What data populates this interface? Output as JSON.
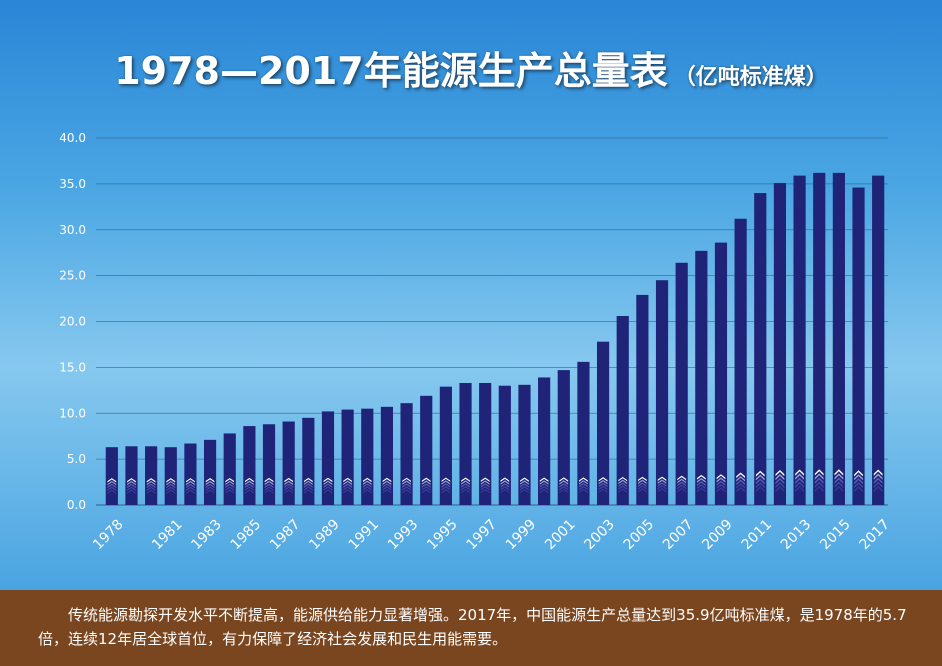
{
  "title": {
    "main": "1978—2017年能源生产总量表",
    "sub": "（亿吨标准煤）"
  },
  "chart_data": {
    "type": "bar",
    "title": "1978—2017年能源生产总量表",
    "xlabel": "",
    "ylabel": "",
    "ylim": [
      0,
      40
    ],
    "yticks": [
      "0.0",
      "5.0",
      "10.0",
      "15.0",
      "20.0",
      "25.0",
      "30.0",
      "35.0",
      "40.0"
    ],
    "grid": true,
    "x": [
      1978,
      1979,
      1980,
      1981,
      1982,
      1983,
      1984,
      1985,
      1986,
      1987,
      1988,
      1989,
      1990,
      1991,
      1992,
      1993,
      1994,
      1995,
      1996,
      1997,
      1998,
      1999,
      2000,
      2001,
      2002,
      2003,
      2004,
      2005,
      2006,
      2007,
      2008,
      2009,
      2010,
      2011,
      2012,
      2013,
      2014,
      2015,
      2016,
      2017
    ],
    "xtick_labels": [
      "1978",
      "1981",
      "1983",
      "1985",
      "1987",
      "1989",
      "1991",
      "1993",
      "1995",
      "1997",
      "1999",
      "2001",
      "2003",
      "2005",
      "2007",
      "2009",
      "2011",
      "2013",
      "2015",
      "2017"
    ],
    "values": [
      6.3,
      6.4,
      6.4,
      6.3,
      6.7,
      7.1,
      7.8,
      8.6,
      8.8,
      9.1,
      9.5,
      10.2,
      10.4,
      10.5,
      10.7,
      11.1,
      11.9,
      12.9,
      13.3,
      13.3,
      13.0,
      13.1,
      13.9,
      14.7,
      15.6,
      17.8,
      20.6,
      22.9,
      24.5,
      26.4,
      27.7,
      28.6,
      31.2,
      34.0,
      35.1,
      35.9,
      36.2,
      36.2,
      34.6,
      35.9
    ],
    "colors": {
      "bar": "#1f2478",
      "chevron": "#ffffff"
    }
  },
  "footer": {
    "text": "传统能源勘探开发水平不断提高，能源供给能力显著增强。2017年，中国能源生产总量达到35.9亿吨标准煤，是1978年的5.7倍，连续12年居全球首位，有力保障了经济社会发展和民生用能需要。"
  }
}
